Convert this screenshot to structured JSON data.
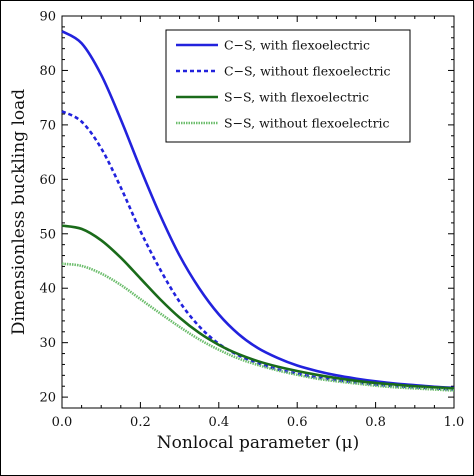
{
  "chart_data": {
    "type": "line",
    "title": "",
    "xlabel": "Nonlocal parameter (μ)",
    "ylabel": "Dimensionless buckling load",
    "xlim": [
      0,
      1
    ],
    "ylim": [
      18,
      90
    ],
    "xticks": [
      "0.0",
      "0.2",
      "0.4",
      "0.6",
      "0.8",
      "1.0"
    ],
    "yticks": [
      "20",
      "30",
      "40",
      "50",
      "60",
      "70",
      "80",
      "90"
    ],
    "grid": false,
    "legend_position": "top-right",
    "x": [
      0,
      0.05,
      0.1,
      0.15,
      0.2,
      0.25,
      0.3,
      0.35,
      0.4,
      0.45,
      0.5,
      0.55,
      0.6,
      0.65,
      0.7,
      0.75,
      0.8,
      0.85,
      0.9,
      0.95,
      1.0
    ],
    "series": [
      {
        "name": "C−S, with flexoelectric",
        "color": "#2222dd",
        "style": "solid",
        "values": [
          87.2,
          85.0,
          79.2,
          71.0,
          62.0,
          53.5,
          46.0,
          40.0,
          35.2,
          31.6,
          29.0,
          27.2,
          25.8,
          24.8,
          24.0,
          23.4,
          22.9,
          22.5,
          22.2,
          21.9,
          21.7
        ]
      },
      {
        "name": "C−S, without flexoelectric",
        "color": "#2222dd",
        "style": "dashed",
        "values": [
          72.5,
          70.6,
          65.7,
          58.5,
          50.5,
          43.5,
          37.5,
          33.0,
          29.8,
          27.7,
          26.2,
          25.1,
          24.3,
          23.6,
          23.1,
          22.7,
          22.3,
          22.0,
          21.8,
          21.6,
          21.4
        ]
      },
      {
        "name": "S−S, with flexoelectric",
        "color": "#1a6b1a",
        "style": "solid",
        "values": [
          51.5,
          50.9,
          48.8,
          45.6,
          41.8,
          38.0,
          34.6,
          31.8,
          29.6,
          27.9,
          26.6,
          25.6,
          24.8,
          24.1,
          23.5,
          23.0,
          22.6,
          22.3,
          22.0,
          21.8,
          21.6
        ]
      },
      {
        "name": "S−S, without flexoelectric",
        "color": "#6cbd6c",
        "style": "dotted",
        "values": [
          44.5,
          44.1,
          42.7,
          40.6,
          38.0,
          35.4,
          32.9,
          30.6,
          28.7,
          27.1,
          25.9,
          24.9,
          24.1,
          23.4,
          22.9,
          22.5,
          22.1,
          21.8,
          21.6,
          21.4,
          21.2
        ]
      }
    ]
  }
}
